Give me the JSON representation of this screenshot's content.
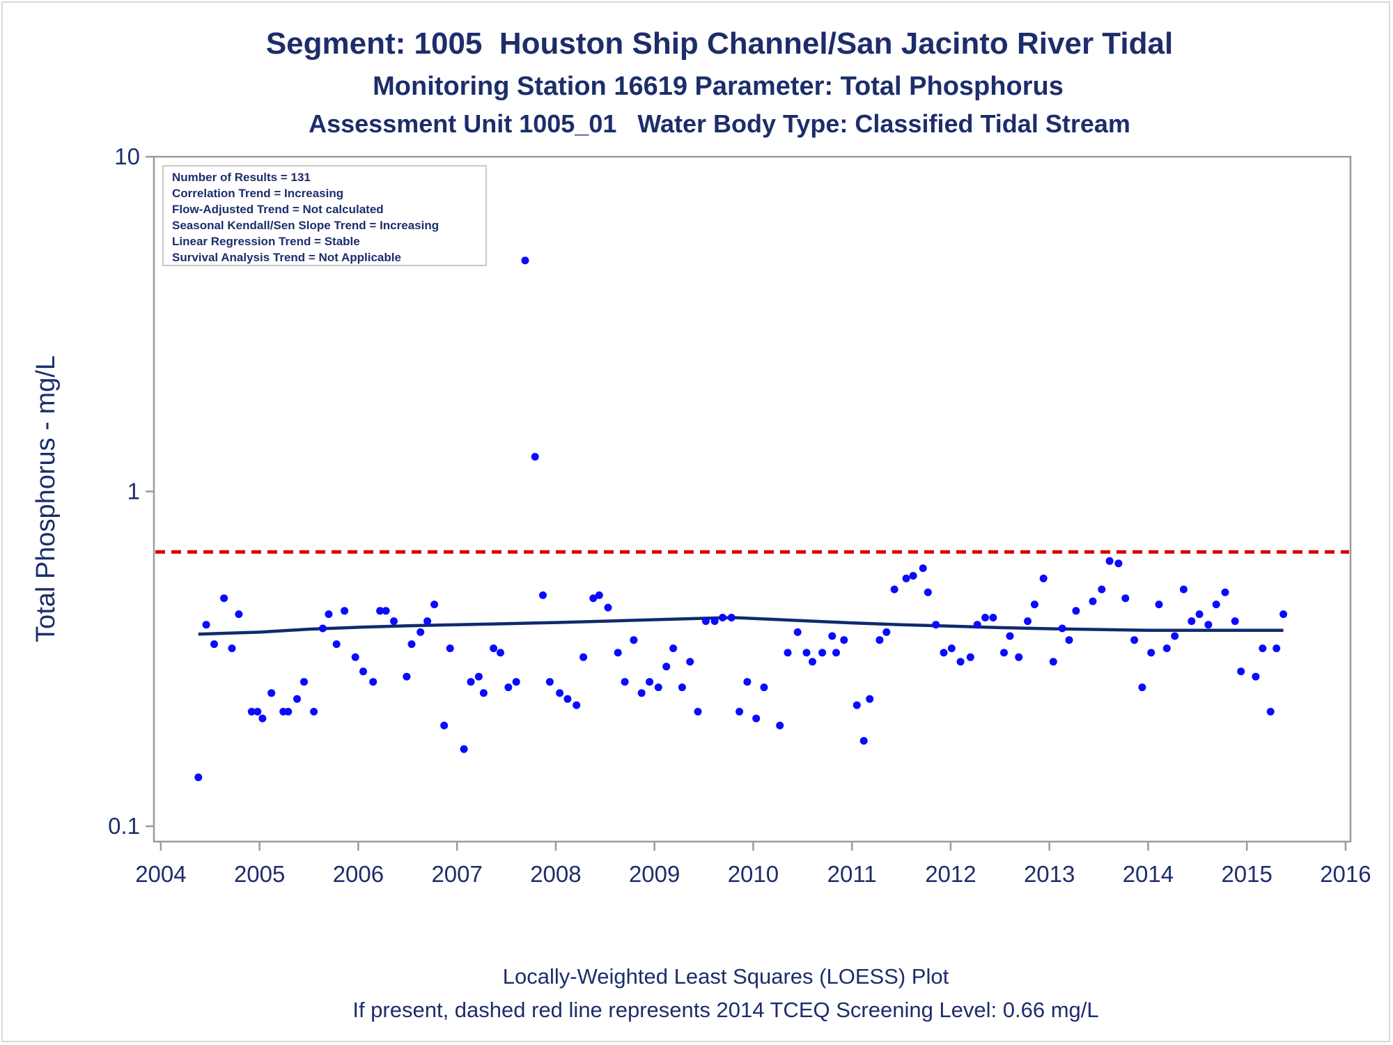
{
  "header": {
    "title": "Segment: 1005  Houston Ship Channel/San Jacinto River Tidal",
    "subtitle": "Monitoring Station 16619 Parameter: Total Phosphorus",
    "subtitle2": "Assessment Unit 1005_01   Water Body Type: Classified Tidal Stream"
  },
  "footer": {
    "line1": "Locally-Weighted Least Squares (LOESS) Plot",
    "line2": "If present, dashed red line represents 2014 TCEQ Screening Level: 0.66 mg/L"
  },
  "stats_box": {
    "lines": [
      "Number of Results = 131",
      "Correlation Trend = Increasing",
      "Flow-Adjusted Trend = Not calculated",
      "Seasonal Kendall/Sen Slope Trend = Increasing",
      "Linear Regression Trend = Stable",
      "Survival Analysis Trend = Not Applicable"
    ]
  },
  "colors": {
    "text": "#1d2d6b",
    "points": "#0a0aff",
    "loess": "#0f2a6e",
    "screening": "#d40000",
    "axis": "#9a9a9a"
  },
  "chart_data": {
    "type": "scatter",
    "ylabel": "Total Phosphorus - mg/L",
    "xlabel": "",
    "y_scale": "log",
    "ylim": [
      0.09,
      10
    ],
    "xlim": [
      2003.93,
      2016.05
    ],
    "y_ticks": [
      {
        "value": 0.1,
        "label": "0.1"
      },
      {
        "value": 1,
        "label": "1"
      },
      {
        "value": 10,
        "label": "10"
      }
    ],
    "x_ticks": [
      {
        "value": 2004,
        "label": "2004"
      },
      {
        "value": 2005,
        "label": "2005"
      },
      {
        "value": 2006,
        "label": "2006"
      },
      {
        "value": 2007,
        "label": "2007"
      },
      {
        "value": 2008,
        "label": "2008"
      },
      {
        "value": 2009,
        "label": "2009"
      },
      {
        "value": 2010,
        "label": "2010"
      },
      {
        "value": 2011,
        "label": "2011"
      },
      {
        "value": 2012,
        "label": "2012"
      },
      {
        "value": 2013,
        "label": "2013"
      },
      {
        "value": 2014,
        "label": "2014"
      },
      {
        "value": 2015,
        "label": "2015"
      },
      {
        "value": 2016,
        "label": "2016"
      }
    ],
    "screening_level": 0.66,
    "points": [
      [
        2004.38,
        0.14
      ],
      [
        2004.46,
        0.4
      ],
      [
        2004.54,
        0.35
      ],
      [
        2004.64,
        0.48
      ],
      [
        2004.72,
        0.34
      ],
      [
        2004.79,
        0.43
      ],
      [
        2004.92,
        0.22
      ],
      [
        2004.98,
        0.22
      ],
      [
        2005.03,
        0.21
      ],
      [
        2005.12,
        0.25
      ],
      [
        2005.24,
        0.22
      ],
      [
        2005.29,
        0.22
      ],
      [
        2005.38,
        0.24
      ],
      [
        2005.45,
        0.27
      ],
      [
        2005.55,
        0.22
      ],
      [
        2005.64,
        0.39
      ],
      [
        2005.7,
        0.43
      ],
      [
        2005.78,
        0.35
      ],
      [
        2005.86,
        0.44
      ],
      [
        2005.97,
        0.32
      ],
      [
        2006.05,
        0.29
      ],
      [
        2006.15,
        0.27
      ],
      [
        2006.22,
        0.44
      ],
      [
        2006.28,
        0.44
      ],
      [
        2006.36,
        0.41
      ],
      [
        2006.49,
        0.28
      ],
      [
        2006.54,
        0.35
      ],
      [
        2006.63,
        0.38
      ],
      [
        2006.7,
        0.41
      ],
      [
        2006.77,
        0.46
      ],
      [
        2006.87,
        0.2
      ],
      [
        2006.93,
        0.34
      ],
      [
        2007.07,
        0.17
      ],
      [
        2007.14,
        0.27
      ],
      [
        2007.22,
        0.28
      ],
      [
        2007.27,
        0.25
      ],
      [
        2007.37,
        0.34
      ],
      [
        2007.44,
        0.33
      ],
      [
        2007.52,
        0.26
      ],
      [
        2007.6,
        0.27
      ],
      [
        2007.69,
        4.9
      ],
      [
        2007.79,
        1.27
      ],
      [
        2007.87,
        0.49
      ],
      [
        2007.94,
        0.27
      ],
      [
        2008.04,
        0.25
      ],
      [
        2008.12,
        0.24
      ],
      [
        2008.21,
        0.23
      ],
      [
        2008.28,
        0.32
      ],
      [
        2008.38,
        0.48
      ],
      [
        2008.44,
        0.49
      ],
      [
        2008.53,
        0.45
      ],
      [
        2008.63,
        0.33
      ],
      [
        2008.7,
        0.27
      ],
      [
        2008.79,
        0.36
      ],
      [
        2008.87,
        0.25
      ],
      [
        2008.95,
        0.27
      ],
      [
        2009.04,
        0.26
      ],
      [
        2009.12,
        0.3
      ],
      [
        2009.19,
        0.34
      ],
      [
        2009.28,
        0.26
      ],
      [
        2009.36,
        0.31
      ],
      [
        2009.44,
        0.22
      ],
      [
        2009.52,
        0.41
      ],
      [
        2009.61,
        0.41
      ],
      [
        2009.69,
        0.42
      ],
      [
        2009.78,
        0.42
      ],
      [
        2009.86,
        0.22
      ],
      [
        2009.94,
        0.27
      ],
      [
        2010.03,
        0.21
      ],
      [
        2010.11,
        0.26
      ],
      [
        2010.27,
        0.2
      ],
      [
        2010.35,
        0.33
      ],
      [
        2010.45,
        0.38
      ],
      [
        2010.54,
        0.33
      ],
      [
        2010.6,
        0.31
      ],
      [
        2010.7,
        0.33
      ],
      [
        2010.8,
        0.37
      ],
      [
        2010.84,
        0.33
      ],
      [
        2010.92,
        0.36
      ],
      [
        2011.05,
        0.23
      ],
      [
        2011.12,
        0.18
      ],
      [
        2011.18,
        0.24
      ],
      [
        2011.28,
        0.36
      ],
      [
        2011.35,
        0.38
      ],
      [
        2011.43,
        0.51
      ],
      [
        2011.55,
        0.55
      ],
      [
        2011.62,
        0.56
      ],
      [
        2011.72,
        0.59
      ],
      [
        2011.77,
        0.5
      ],
      [
        2011.85,
        0.4
      ],
      [
        2011.93,
        0.33
      ],
      [
        2012.01,
        0.34
      ],
      [
        2012.1,
        0.31
      ],
      [
        2012.2,
        0.32
      ],
      [
        2012.27,
        0.4
      ],
      [
        2012.35,
        0.42
      ],
      [
        2012.43,
        0.42
      ],
      [
        2012.54,
        0.33
      ],
      [
        2012.6,
        0.37
      ],
      [
        2012.69,
        0.32
      ],
      [
        2012.78,
        0.41
      ],
      [
        2012.85,
        0.46
      ],
      [
        2012.94,
        0.55
      ],
      [
        2013.04,
        0.31
      ],
      [
        2013.13,
        0.39
      ],
      [
        2013.2,
        0.36
      ],
      [
        2013.27,
        0.44
      ],
      [
        2013.44,
        0.47
      ],
      [
        2013.53,
        0.51
      ],
      [
        2013.61,
        0.62
      ],
      [
        2013.7,
        0.61
      ],
      [
        2013.77,
        0.48
      ],
      [
        2013.86,
        0.36
      ],
      [
        2013.94,
        0.26
      ],
      [
        2014.03,
        0.33
      ],
      [
        2014.11,
        0.46
      ],
      [
        2014.19,
        0.34
      ],
      [
        2014.27,
        0.37
      ],
      [
        2014.36,
        0.51
      ],
      [
        2014.44,
        0.41
      ],
      [
        2014.52,
        0.43
      ],
      [
        2014.61,
        0.4
      ],
      [
        2014.69,
        0.46
      ],
      [
        2014.78,
        0.5
      ],
      [
        2014.88,
        0.41
      ],
      [
        2014.94,
        0.29
      ],
      [
        2015.09,
        0.28
      ],
      [
        2015.16,
        0.34
      ],
      [
        2015.24,
        0.22
      ],
      [
        2015.3,
        0.34
      ],
      [
        2015.37,
        0.43
      ]
    ],
    "loess": [
      [
        2004.38,
        0.375
      ],
      [
        2005.0,
        0.38
      ],
      [
        2005.5,
        0.388
      ],
      [
        2006.0,
        0.393
      ],
      [
        2006.5,
        0.397
      ],
      [
        2007.0,
        0.4
      ],
      [
        2007.5,
        0.403
      ],
      [
        2008.0,
        0.406
      ],
      [
        2008.5,
        0.41
      ],
      [
        2009.0,
        0.414
      ],
      [
        2009.5,
        0.418
      ],
      [
        2009.8,
        0.42
      ],
      [
        2010.2,
        0.415
      ],
      [
        2010.6,
        0.41
      ],
      [
        2011.0,
        0.405
      ],
      [
        2011.5,
        0.4
      ],
      [
        2012.0,
        0.396
      ],
      [
        2012.5,
        0.392
      ],
      [
        2013.0,
        0.389
      ],
      [
        2013.5,
        0.387
      ],
      [
        2014.0,
        0.385
      ],
      [
        2014.5,
        0.385
      ],
      [
        2015.0,
        0.385
      ],
      [
        2015.37,
        0.385
      ]
    ]
  }
}
